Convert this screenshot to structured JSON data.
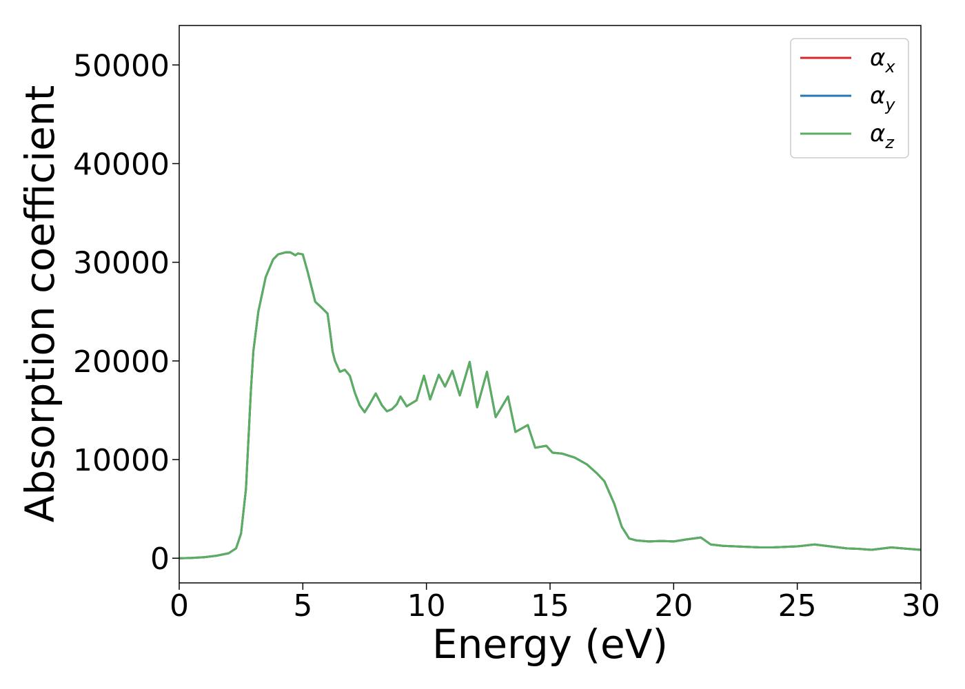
{
  "chart_data": {
    "type": "line",
    "title": "",
    "xlabel": "Energy (eV)",
    "ylabel": "Absorption coefficient",
    "xlim": [
      0,
      30
    ],
    "ylim": [
      -2500,
      54000
    ],
    "x_ticks": [
      0,
      5,
      10,
      15,
      20,
      25,
      30
    ],
    "y_ticks": [
      0,
      10000,
      20000,
      30000,
      40000,
      50000
    ],
    "grid": false,
    "legend_position": "top-right",
    "series": [
      {
        "name_base": "α",
        "name_sub": "x",
        "color": "#d62728"
      },
      {
        "name_base": "α",
        "name_sub": "y",
        "color": "#1f77b4"
      },
      {
        "name_base": "α",
        "name_sub": "z",
        "color": "#5aae61"
      }
    ],
    "x": [
      0,
      0.5,
      1.0,
      1.5,
      2.0,
      2.3,
      2.5,
      2.7,
      2.8,
      2.9,
      3.0,
      3.2,
      3.5,
      3.8,
      4.0,
      4.3,
      4.5,
      4.7,
      4.8,
      5.0,
      5.2,
      5.5,
      5.8,
      6.0,
      6.1,
      6.2,
      6.3,
      6.5,
      6.7,
      6.9,
      7.1,
      7.3,
      7.5,
      7.7,
      7.95,
      8.2,
      8.4,
      8.6,
      8.8,
      8.95,
      9.2,
      9.4,
      9.6,
      9.9,
      10.15,
      10.5,
      10.75,
      11.05,
      11.35,
      11.75,
      12.05,
      12.45,
      12.8,
      13.3,
      13.6,
      14.1,
      14.4,
      14.85,
      15.1,
      15.5,
      16.0,
      16.5,
      16.9,
      17.2,
      17.6,
      17.9,
      18.2,
      18.5,
      19.0,
      19.5,
      20.0,
      20.5,
      21.1,
      21.5,
      22.0,
      22.5,
      23.0,
      23.5,
      24.0,
      24.5,
      25.0,
      25.7,
      26.5,
      27.0,
      27.5,
      28.0,
      28.8,
      29.5,
      30.0
    ],
    "values": [
      0,
      30,
      100,
      250,
      500,
      1000,
      2500,
      7000,
      12000,
      17000,
      21000,
      25000,
      28500,
      30300,
      30800,
      31000,
      31000,
      30700,
      30900,
      30800,
      29000,
      26000,
      25300,
      24800,
      23000,
      21000,
      20000,
      18900,
      19100,
      18500,
      16800,
      15500,
      14800,
      15600,
      16700,
      15500,
      14900,
      15100,
      15600,
      16400,
      15400,
      15700,
      16000,
      18500,
      16100,
      18600,
      17400,
      19000,
      16500,
      19900,
      15300,
      18900,
      14300,
      16400,
      12800,
      13500,
      11200,
      11400,
      10700,
      10600,
      10200,
      9500,
      8600,
      7800,
      5500,
      3200,
      2000,
      1800,
      1700,
      1750,
      1700,
      1900,
      2100,
      1400,
      1250,
      1200,
      1150,
      1100,
      1100,
      1150,
      1200,
      1400,
      1150,
      1000,
      950,
      850,
      1100,
      950,
      850
    ]
  }
}
